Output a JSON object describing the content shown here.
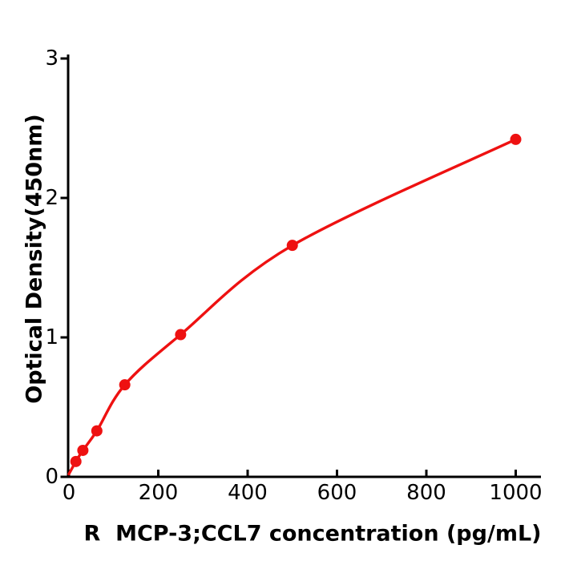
{
  "chart_data": {
    "type": "scatter",
    "subtype": "standard-curve-with-fitted-line",
    "title": "",
    "xlabel": "R  MCP-3;CCL7 concentration (pg/mL)",
    "ylabel": "Optical Density(450nm)",
    "x": [
      15.6,
      31.2,
      62.5,
      125,
      250,
      500,
      1000
    ],
    "y": [
      0.11,
      0.19,
      0.33,
      0.66,
      1.02,
      1.66,
      2.42
    ],
    "curve_start": {
      "x": 0,
      "y": 0.02
    },
    "x_ticks": [
      0,
      200,
      400,
      600,
      800,
      1000
    ],
    "x_tick_labels": [
      "0",
      "200",
      "400",
      "600",
      "800",
      "1000"
    ],
    "y_ticks": [
      0,
      1,
      2,
      3
    ],
    "y_tick_labels": [
      "0",
      "1",
      "2",
      "3"
    ],
    "xlim": [
      0,
      1057
    ],
    "ylim": [
      0,
      3
    ],
    "grid": false,
    "legend": "none",
    "line_color": "#ee1111",
    "marker_color": "#ee1111",
    "axis_color": "#000000",
    "text_color": "#000000",
    "background_color": "#ffffff"
  }
}
